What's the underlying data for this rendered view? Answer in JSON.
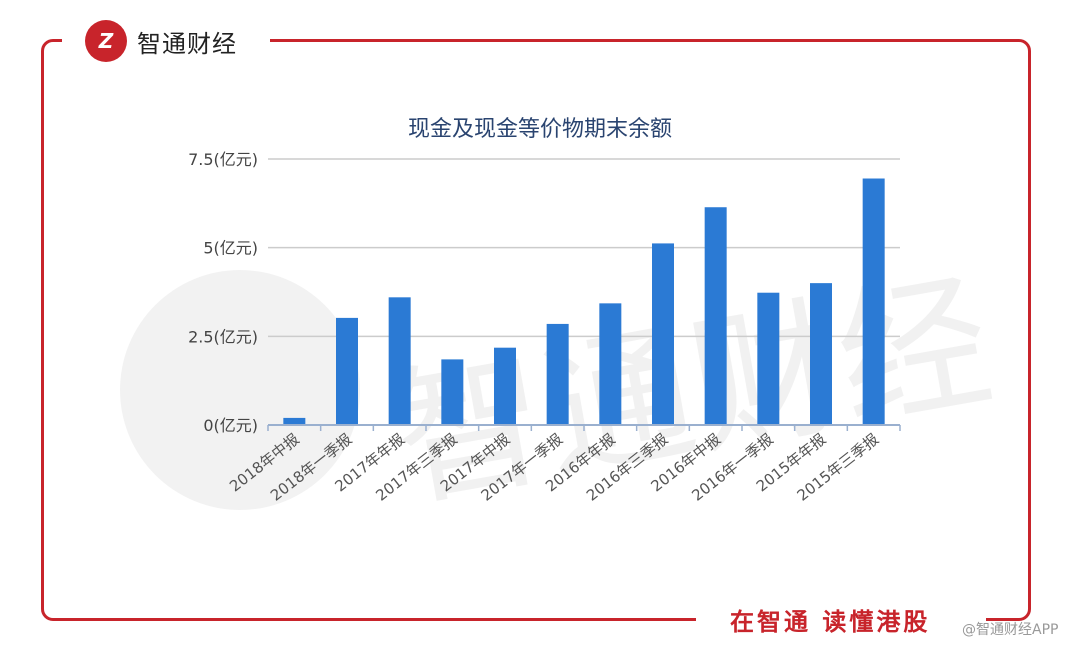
{
  "brand": {
    "logo_text": "Z",
    "name": "智通财经"
  },
  "footer": {
    "slogan": "在智通 读懂港股",
    "app_mark": "@智通财经APP"
  },
  "watermark": {
    "text": "智通财经"
  },
  "colors": {
    "accent": "#c8242b",
    "bar": "#2b7ad4",
    "grid": "#cccccc"
  },
  "chart_data": {
    "type": "bar",
    "title": "现金及现金等价物期末余额",
    "categories": [
      "2018年中报",
      "2018年一季报",
      "2017年年报",
      "2017年三季报",
      "2017年中报",
      "2017年一季报",
      "2016年年报",
      "2016年三季报",
      "2016年中报",
      "2016年一季报",
      "2015年年报",
      "2015年三季报"
    ],
    "values": [
      0.2,
      3.02,
      3.6,
      1.85,
      2.18,
      2.85,
      3.43,
      5.12,
      6.14,
      3.73,
      4.0,
      6.95
    ],
    "y_ticks": [
      {
        "value": 0,
        "label": "0(亿元)"
      },
      {
        "value": 2.5,
        "label": "2.5(亿元)"
      },
      {
        "value": 5,
        "label": "5(亿元)"
      },
      {
        "value": 7.5,
        "label": "7.5(亿元)"
      }
    ],
    "ylim": [
      0,
      7.5
    ],
    "grid": true,
    "legend": "none"
  }
}
